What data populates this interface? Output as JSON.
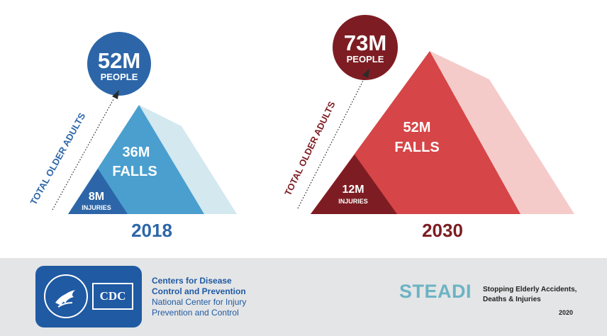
{
  "panels": [
    {
      "year": "2018",
      "people_value": "52M",
      "people_label": "PEOPLE",
      "falls_value": "36M",
      "falls_label": "FALLS",
      "injuries_value": "8M",
      "injuries_label": "INJURIES",
      "side_label": "TOTAL OLDER ADULTS"
    },
    {
      "year": "2030",
      "people_value": "73M",
      "people_label": "PEOPLE",
      "falls_value": "52M",
      "falls_label": "FALLS",
      "injuries_value": "12M",
      "injuries_label": "INJURIES",
      "side_label": "TOTAL OLDER ADULTS"
    }
  ],
  "colors": {
    "blue_dark": "#2d66a8",
    "blue_mid": "#4a9fcf",
    "blue_light": "#d3e8ef",
    "red_dark": "#7d1d23",
    "red_mid": "#d64547",
    "red_light": "#f5cbca"
  },
  "footer": {
    "cdc_wordmark": "CDC",
    "org_line1": "Centers for Disease",
    "org_line2": "Control and Prevention",
    "org_line3": "National Center for Injury",
    "org_line4": "Prevention and Control",
    "steadi_logo": "STEADI",
    "steadi_tag_line1": "Stopping Elderly Accidents,",
    "steadi_tag_line2": "Deaths & Injuries",
    "steadi_year": "2020"
  }
}
